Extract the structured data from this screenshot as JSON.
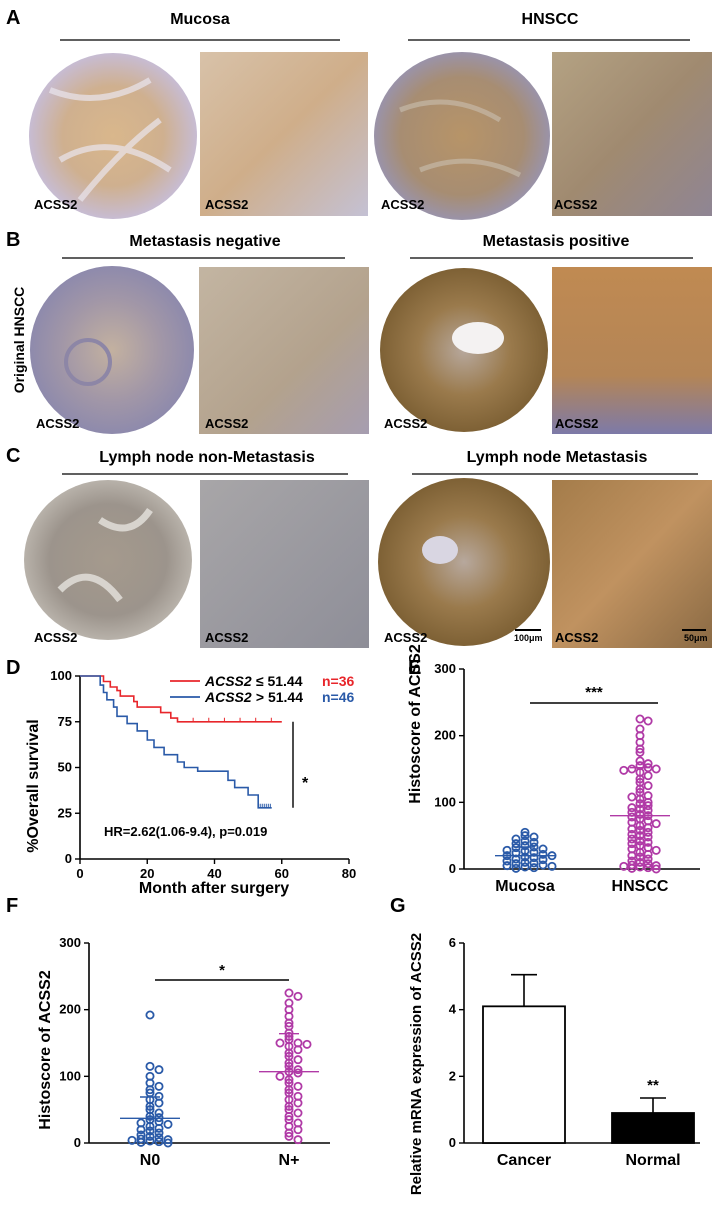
{
  "panels": {
    "A": {
      "letter": "A",
      "headers": [
        "Mucosa",
        "HNSCC"
      ],
      "image_labels": [
        "ACSS2",
        "ACSS2",
        "ACSS2",
        "ACSS2"
      ]
    },
    "B": {
      "letter": "B",
      "headers": [
        "Metastasis negative",
        "Metastasis positive"
      ],
      "side_label": "Original HNSCC",
      "image_labels": [
        "ACSS2",
        "ACSS2",
        "ACSS2",
        "ACSS2"
      ]
    },
    "C": {
      "letter": "C",
      "headers": [
        "Lymph node non-Metastasis",
        "Lymph node Metastasis"
      ],
      "image_labels": [
        "ACSS2",
        "ACSS2",
        "ACSS2",
        "ACSS2"
      ],
      "scale_bars": [
        "100μm",
        "50μm"
      ]
    },
    "D": {
      "letter": "D"
    },
    "E": {
      "letter": "E"
    },
    "F": {
      "letter": "F"
    },
    "G": {
      "letter": "G"
    }
  },
  "chart_data": [
    {
      "id": "D",
      "type": "line",
      "ylabel": "%Overall survival",
      "xlabel": "Month after surgery",
      "xlim": [
        0,
        80
      ],
      "ylim": [
        0,
        100
      ],
      "xticks": [
        "0",
        "20",
        "40",
        "60",
        "80"
      ],
      "yticks": [
        "0",
        "25",
        "50",
        "75",
        "100"
      ],
      "legend": [
        {
          "gene": "ACSS2",
          "op": " ≤ 51.44 ",
          "n": "n=36",
          "color": "#e8262b"
        },
        {
          "gene": "ACSS2",
          "op": " > 51.44 ",
          "n": "n=46",
          "color": "#2a5aa8"
        }
      ],
      "annotation": "HR=2.62(1.06-9.4), p=0.019",
      "significance": "*",
      "series": [
        {
          "color": "#e8262b",
          "steps": [
            [
              0,
              100
            ],
            [
              7,
              100
            ],
            [
              7,
              97
            ],
            [
              9,
              97
            ],
            [
              9,
              94
            ],
            [
              11,
              94
            ],
            [
              11,
              92
            ],
            [
              12,
              92
            ],
            [
              12,
              89
            ],
            [
              16,
              89
            ],
            [
              16,
              86
            ],
            [
              17,
              86
            ],
            [
              17,
              83
            ],
            [
              24,
              83
            ],
            [
              24,
              80
            ],
            [
              27,
              80
            ],
            [
              27,
              77
            ],
            [
              29,
              77
            ],
            [
              29,
              75
            ],
            [
              60,
              75
            ]
          ]
        },
        {
          "color": "#2a5aa8",
          "steps": [
            [
              0,
              100
            ],
            [
              6,
              100
            ],
            [
              6,
              95
            ],
            [
              7,
              95
            ],
            [
              7,
              91
            ],
            [
              8,
              91
            ],
            [
              8,
              87
            ],
            [
              10,
              87
            ],
            [
              10,
              83
            ],
            [
              11,
              83
            ],
            [
              11,
              78
            ],
            [
              14,
              78
            ],
            [
              14,
              74
            ],
            [
              17,
              74
            ],
            [
              17,
              70
            ],
            [
              20,
              70
            ],
            [
              20,
              65
            ],
            [
              22,
              65
            ],
            [
              22,
              61
            ],
            [
              25,
              61
            ],
            [
              25,
              57
            ],
            [
              29,
              57
            ],
            [
              29,
              53
            ],
            [
              31,
              53
            ],
            [
              31,
              50
            ],
            [
              35,
              50
            ],
            [
              35,
              48
            ],
            [
              44,
              48
            ],
            [
              44,
              43
            ],
            [
              46,
              43
            ],
            [
              46,
              39
            ],
            [
              50,
              39
            ],
            [
              50,
              35
            ],
            [
              53,
              35
            ],
            [
              53,
              28
            ],
            [
              57,
              28
            ]
          ]
        }
      ]
    },
    {
      "id": "E",
      "type": "scatter",
      "ylabel": "Histoscore of ACSS2",
      "categories": [
        "Mucosa",
        "HNSCC"
      ],
      "ylim": [
        0,
        300
      ],
      "yticks": [
        "0",
        "100",
        "200",
        "300"
      ],
      "significance": "***",
      "groups": [
        {
          "name": "Mucosa",
          "color": "#2a5aa8",
          "mean": 20,
          "sd": 13,
          "values": [
            55,
            50,
            48,
            45,
            42,
            40,
            38,
            35,
            33,
            32,
            30,
            28,
            27,
            25,
            24,
            22,
            20,
            20,
            18,
            17,
            15,
            14,
            12,
            10,
            9,
            8,
            6,
            5,
            4,
            3,
            2,
            1
          ]
        },
        {
          "name": "HNSCC",
          "color": "#b03aa6",
          "mean": 80,
          "sd": 72,
          "values": [
            225,
            222,
            210,
            200,
            190,
            180,
            175,
            162,
            158,
            155,
            152,
            150,
            150,
            148,
            145,
            140,
            135,
            130,
            125,
            120,
            115,
            110,
            108,
            105,
            100,
            98,
            95,
            92,
            90,
            88,
            85,
            82,
            80,
            78,
            75,
            72,
            70,
            68,
            65,
            62,
            60,
            58,
            55,
            52,
            50,
            48,
            45,
            42,
            40,
            38,
            35,
            32,
            30,
            28,
            25,
            22,
            20,
            18,
            15,
            12,
            10,
            8,
            6,
            5,
            4,
            3,
            2,
            1,
            0
          ]
        }
      ]
    },
    {
      "id": "F",
      "type": "scatter",
      "ylabel": "Histoscore of ACSS2",
      "categories": [
        "N0",
        "N+"
      ],
      "ylim": [
        0,
        300
      ],
      "yticks": [
        "0",
        "100",
        "200",
        "300"
      ],
      "significance": "*",
      "groups": [
        {
          "name": "N0",
          "color": "#2a5aa8",
          "mean": 37,
          "sd": 32,
          "values": [
            192,
            115,
            110,
            100,
            90,
            85,
            80,
            75,
            70,
            65,
            60,
            55,
            50,
            45,
            40,
            38,
            35,
            32,
            30,
            28,
            25,
            22,
            20,
            18,
            15,
            12,
            10,
            8,
            6,
            5,
            4,
            3,
            2,
            1,
            0
          ]
        },
        {
          "name": "N+",
          "color": "#b03aa6",
          "mean": 107,
          "sd": 57,
          "values": [
            225,
            220,
            210,
            200,
            190,
            180,
            175,
            165,
            160,
            155,
            150,
            150,
            148,
            145,
            140,
            135,
            130,
            125,
            120,
            115,
            110,
            107,
            105,
            100,
            95,
            90,
            85,
            80,
            75,
            70,
            65,
            60,
            55,
            50,
            45,
            40,
            35,
            30,
            25,
            20,
            15,
            10,
            5
          ]
        }
      ]
    },
    {
      "id": "G",
      "type": "bar",
      "ylabel": "Relative mRNA expression of ACSS2",
      "categories": [
        "Cancer",
        "Normal"
      ],
      "values": [
        4.1,
        0.9
      ],
      "errors": [
        0.95,
        0.45
      ],
      "ylim": [
        0,
        6
      ],
      "yticks": [
        "0",
        "2",
        "4",
        "6"
      ],
      "fills": [
        "#ffffff",
        "#000000"
      ],
      "significance": "**"
    }
  ]
}
